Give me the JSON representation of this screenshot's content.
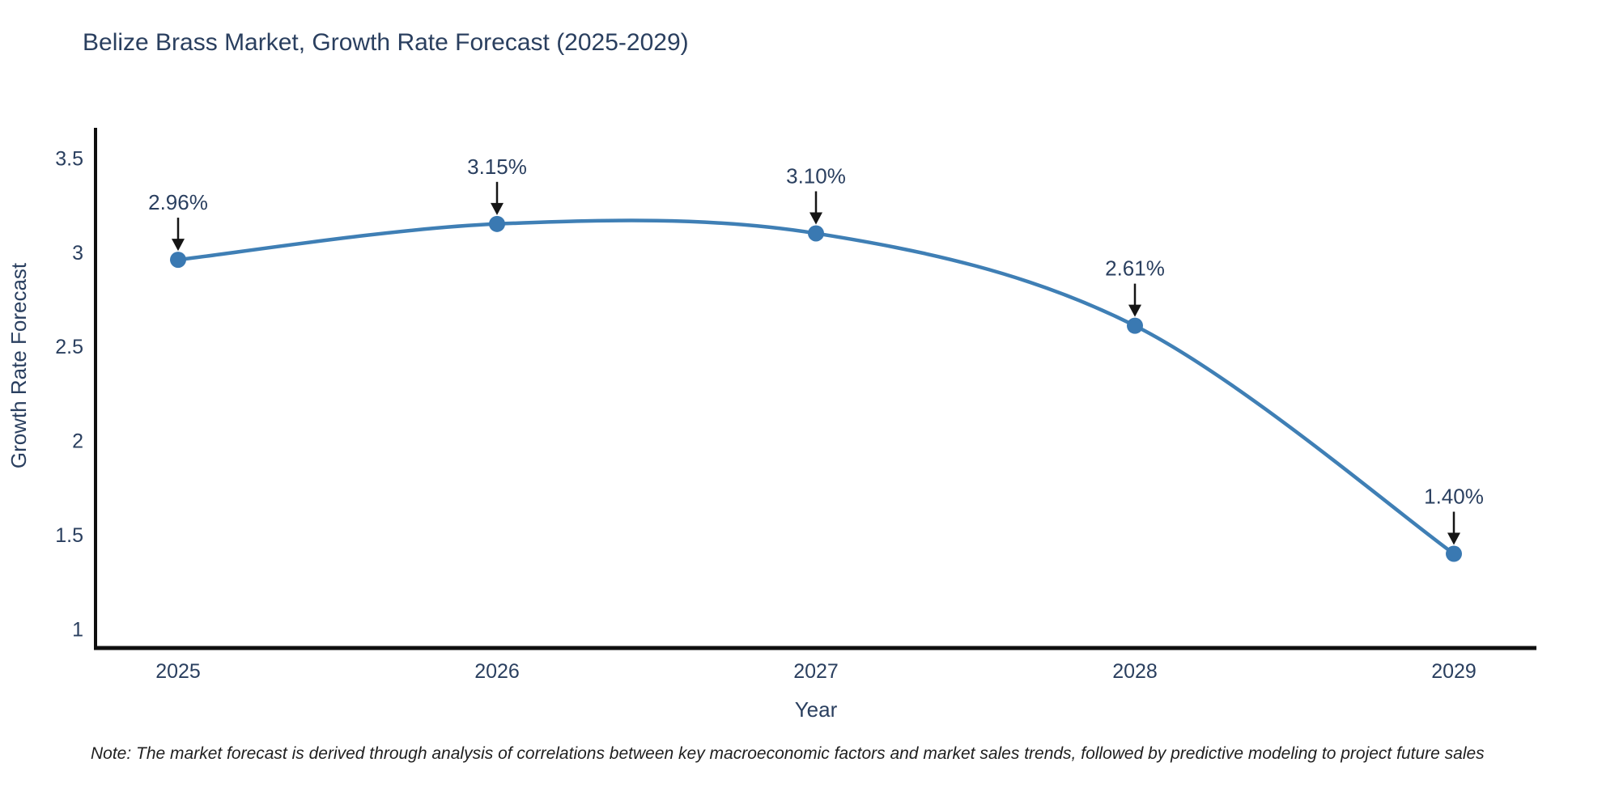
{
  "title": "Belize Brass Market, Growth Rate Forecast (2025-2029)",
  "note": "Note: The market forecast is derived through analysis of correlations between key macroeconomic factors and market sales trends, followed by predictive modeling to project future sales",
  "chart_data": {
    "type": "line",
    "title": "Belize Brass Market, Growth Rate Forecast (2025-2029)",
    "xlabel": "Year",
    "ylabel": "Growth Rate Forecast",
    "categories": [
      "2025",
      "2026",
      "2027",
      "2028",
      "2029"
    ],
    "values": [
      2.96,
      3.15,
      3.1,
      2.61,
      1.4
    ],
    "point_labels": [
      "2.96%",
      "3.15%",
      "3.10%",
      "2.61%",
      "1.40%"
    ],
    "yticks": [
      1,
      1.5,
      2,
      2.5,
      3,
      3.5
    ],
    "ylim": [
      0.9,
      3.66
    ],
    "line_shape": "spline",
    "grid": false,
    "legend": "none",
    "colors": {
      "line": "#3f7fb5",
      "marker": "#3a79b2",
      "axis": "#0f0f0f",
      "text": "#2a3f5f",
      "arrow": "#151515"
    }
  }
}
